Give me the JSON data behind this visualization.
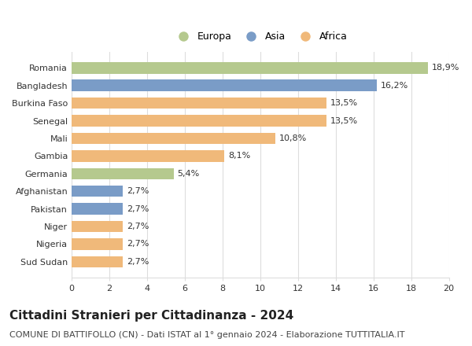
{
  "countries": [
    "Romania",
    "Bangladesh",
    "Burkina Faso",
    "Senegal",
    "Mali",
    "Gambia",
    "Germania",
    "Afghanistan",
    "Pakistan",
    "Niger",
    "Nigeria",
    "Sud Sudan"
  ],
  "values": [
    18.9,
    16.2,
    13.5,
    13.5,
    10.8,
    8.1,
    5.4,
    2.7,
    2.7,
    2.7,
    2.7,
    2.7
  ],
  "labels": [
    "18,9%",
    "16,2%",
    "13,5%",
    "13,5%",
    "10,8%",
    "8,1%",
    "5,4%",
    "2,7%",
    "2,7%",
    "2,7%",
    "2,7%",
    "2,7%"
  ],
  "continents": [
    "Europa",
    "Asia",
    "Africa",
    "Africa",
    "Africa",
    "Africa",
    "Europa",
    "Asia",
    "Asia",
    "Africa",
    "Africa",
    "Africa"
  ],
  "colors": {
    "Europa": "#b5c98e",
    "Asia": "#7a9cc7",
    "Africa": "#f0b97a"
  },
  "legend_order": [
    "Europa",
    "Asia",
    "Africa"
  ],
  "xlim": [
    0,
    20
  ],
  "xticks": [
    0,
    2,
    4,
    6,
    8,
    10,
    12,
    14,
    16,
    18,
    20
  ],
  "title": "Cittadini Stranieri per Cittadinanza - 2024",
  "subtitle": "COMUNE DI BATTIFOLLO (CN) - Dati ISTAT al 1° gennaio 2024 - Elaborazione TUTTITALIA.IT",
  "background_color": "#ffffff",
  "grid_color": "#dddddd",
  "bar_height": 0.65,
  "title_fontsize": 11,
  "subtitle_fontsize": 8,
  "label_fontsize": 8,
  "tick_fontsize": 8,
  "legend_fontsize": 9
}
